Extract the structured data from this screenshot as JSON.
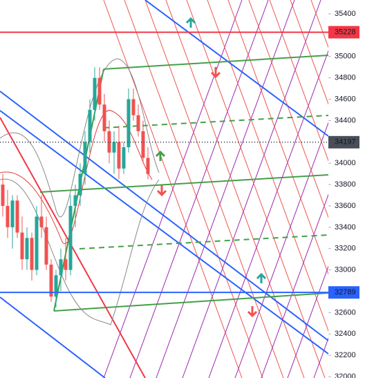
{
  "chart_data": {
    "type": "candlestick",
    "open": [
      33800,
      33600,
      33400,
      33650,
      33350,
      33100,
      33300,
      33000,
      33500,
      33400,
      33050,
      32750,
      32950,
      33100,
      33000,
      33600,
      33700,
      33900,
      34200,
      34500,
      34800,
      34550,
      34300,
      34100,
      34200,
      33950,
      34150,
      34600,
      34450,
      34300,
      34050
    ],
    "high": [
      33900,
      33750,
      33700,
      33700,
      33500,
      33400,
      33350,
      33600,
      33700,
      33500,
      33100,
      33000,
      33200,
      33300,
      33700,
      33800,
      34000,
      34300,
      34600,
      34900,
      34900,
      34650,
      34400,
      34300,
      34350,
      34200,
      34700,
      34700,
      34550,
      34400,
      34150
    ],
    "low": [
      33500,
      33300,
      33200,
      33300,
      33000,
      33000,
      32900,
      32950,
      33300,
      33000,
      32700,
      32650,
      32800,
      32900,
      32950,
      33400,
      33600,
      33800,
      34100,
      34400,
      34500,
      34200,
      34000,
      33900,
      33850,
      33900,
      34100,
      34400,
      34250,
      34000,
      33850
    ],
    "close": [
      33600,
      33400,
      33650,
      33350,
      33100,
      33300,
      33000,
      33500,
      33400,
      33050,
      32750,
      32950,
      33100,
      33000,
      33600,
      33700,
      33900,
      34200,
      34500,
      34800,
      34550,
      34300,
      34100,
      34200,
      33950,
      34150,
      34600,
      34450,
      34300,
      34050,
      33900
    ],
    "up_color": "#26a69a",
    "down_color": "#ef5350",
    "ylim": [
      31987,
      35530
    ],
    "yticks": [
      35400,
      35000,
      34800,
      34600,
      34400,
      34000,
      33800,
      33600,
      33400,
      33200,
      33000,
      32600,
      32400,
      32200,
      32000
    ],
    "price_lines": [
      {
        "value": 35228,
        "color": "#f23645"
      },
      {
        "value": 34197,
        "color": "#4a4e59"
      },
      {
        "value": 32789,
        "color": "#2962ff"
      }
    ]
  }
}
